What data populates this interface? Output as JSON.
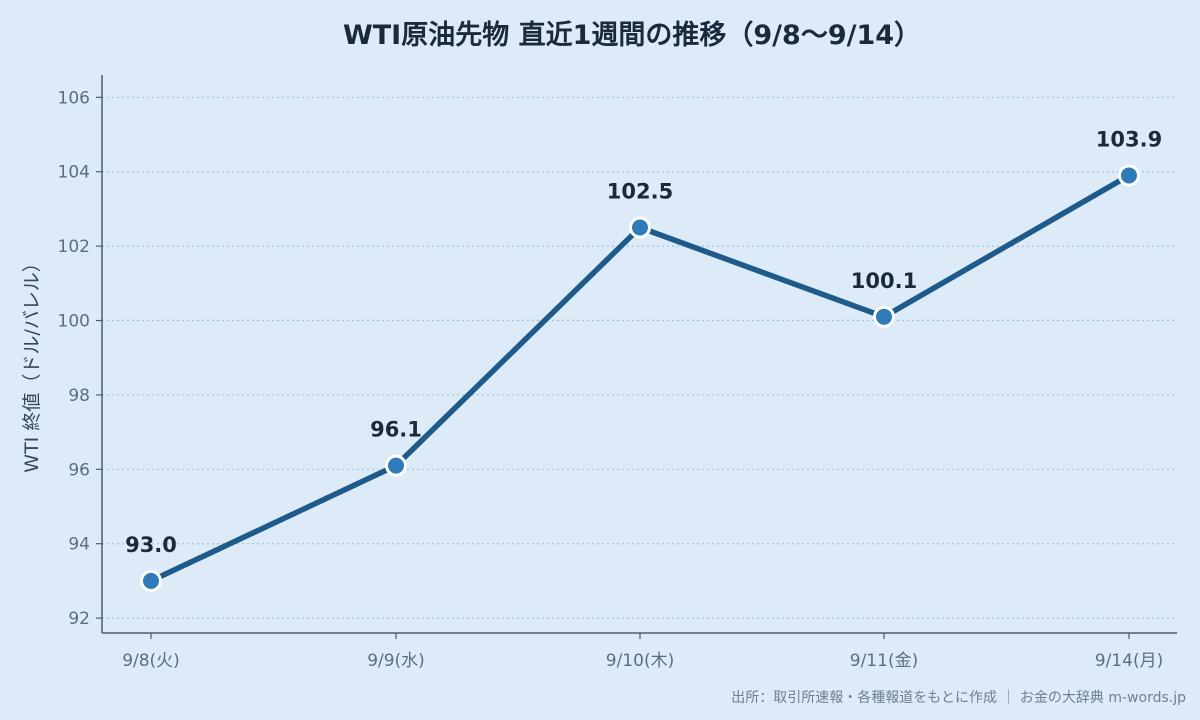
{
  "chart_data": {
    "type": "line",
    "title": "WTI原油先物 直近1週間の推移（9/8〜9/14）",
    "xlabel": "",
    "ylabel": "WTI 終値（ドル/バレル）",
    "categories": [
      "9/8(火)",
      "9/9(水)",
      "9/10(木)",
      "9/11(金)",
      "9/14(月)"
    ],
    "series": [
      {
        "values": [
          93.0,
          96.1,
          102.5,
          100.1,
          103.9
        ]
      }
    ],
    "data_labels": [
      "93.0",
      "96.1",
      "102.5",
      "100.1",
      "103.9"
    ],
    "yticks": [
      "92",
      "94",
      "96",
      "98",
      "100",
      "102",
      "104",
      "106"
    ],
    "ylim": [
      91.6,
      106.6
    ],
    "grid": "horizontal dotted",
    "source": "出所：取引所速報・各種報道をもとに作成 ｜ お金の大辞典 m-words.jp",
    "colors": {
      "background": "#dcebf7",
      "line": "#1e5a8a",
      "marker_fill": "#2f7ab8",
      "marker_stroke": "#ffffff",
      "grid": "#9cc3e0",
      "axis": "#4a5d70"
    }
  }
}
